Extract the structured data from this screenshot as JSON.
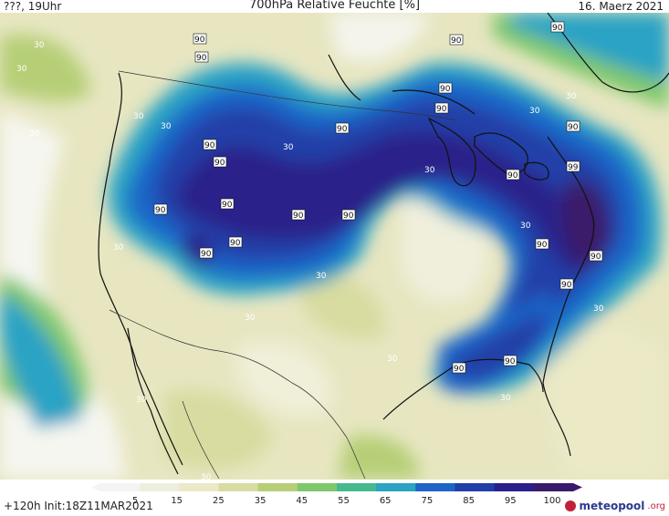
{
  "header": {
    "left": "???, 19Uhr",
    "title": "700hPa Relative Feuchte [%]",
    "date": "16. Maerz 2021"
  },
  "footer": {
    "init": "+120h  Init:18Z11MAR2021",
    "brand": "meteopool",
    "brand_suffix": ".org"
  },
  "colorbar": {
    "ticks": [
      "5",
      "15",
      "25",
      "35",
      "45",
      "55",
      "65",
      "75",
      "85",
      "95",
      "100"
    ],
    "colors": [
      "#f4f4f4",
      "#eeeedd",
      "#ebe9c6",
      "#d8dca0",
      "#b6cf77",
      "#7ec86c",
      "#47b98f",
      "#2aa3c4",
      "#1d66c8",
      "#203fa8",
      "#2a208a",
      "#3a1a6b"
    ]
  },
  "contour_labels": {
    "value_30": "30",
    "value_90": "90",
    "value_99": "99"
  }
}
